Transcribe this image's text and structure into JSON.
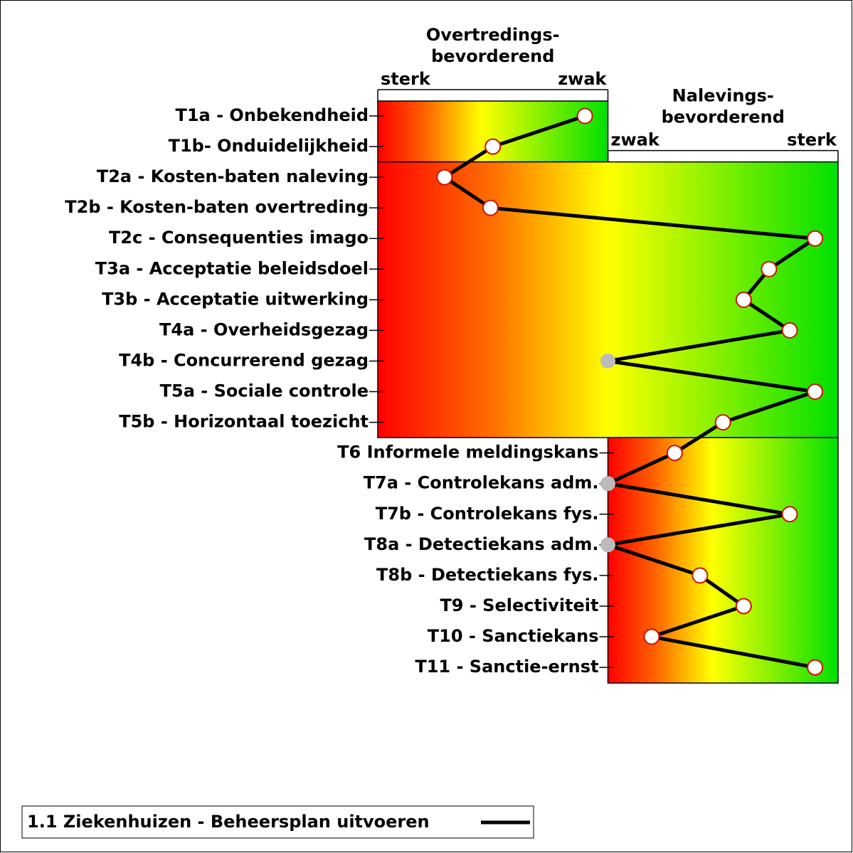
{
  "chart_data": {
    "type": "profile",
    "categories": [
      "T1a - Onbekendheid",
      "T1b-  Onduidelijkheid",
      "T2a - Kosten-baten naleving",
      "T2b - Kosten-baten overtreding",
      "T2c - Consequenties imago",
      "T3a - Acceptatie beleidsdoel",
      "T3b - Acceptatie uitwerking",
      "T4a - Overheidsgezag",
      "T4b - Concurrerend gezag",
      "T5a - Sociale controle",
      "T5b - Horizontaal toezicht",
      "T6 Informele meldingskans",
      "T7a - Controlekans adm.",
      "T7b - Controlekans fys.",
      "T8a - Detectiekans adm.",
      "T8b - Detectiekans fys.",
      "T9 - Selectiviteit",
      "T10 - Sanctiekans",
      "T11 - Sanctie-ernst"
    ],
    "xlim": [
      -100,
      100
    ],
    "zones": [
      {
        "rows": [
          0,
          1
        ],
        "xlim": [
          -100,
          0
        ],
        "title": [
          "Overtredings-",
          "bevorderend"
        ],
        "left_label": "sterk",
        "right_label": "zwak"
      },
      {
        "rows": [
          2,
          10
        ],
        "xlim": [
          -100,
          100
        ],
        "title": [
          "Nalevings-",
          "bevorderend"
        ],
        "left_label": "zwak",
        "right_label": "sterk"
      },
      {
        "rows": [
          11,
          18
        ],
        "xlim": [
          0,
          100
        ]
      }
    ],
    "series": [
      {
        "name": "1.1 Ziekenhuizen - Beheersplan uitvoeren",
        "color": "#000000",
        "values": [
          -10,
          -50,
          -71,
          -51,
          90,
          70,
          59,
          79,
          0,
          90,
          50,
          29,
          0,
          79,
          0,
          40,
          59,
          19,
          90
        ],
        "marker_colors": [
          "#ffffff",
          "#ffffff",
          "#ffffff",
          "#ffffff",
          "#ffffff",
          "#ffffff",
          "#ffffff",
          "#ffffff",
          "#bbbbbb",
          "#ffffff",
          "#ffffff",
          "#ffffff",
          "#bbbbbb",
          "#ffffff",
          "#bbbbbb",
          "#ffffff",
          "#ffffff",
          "#ffffff",
          "#ffffff"
        ]
      }
    ]
  }
}
